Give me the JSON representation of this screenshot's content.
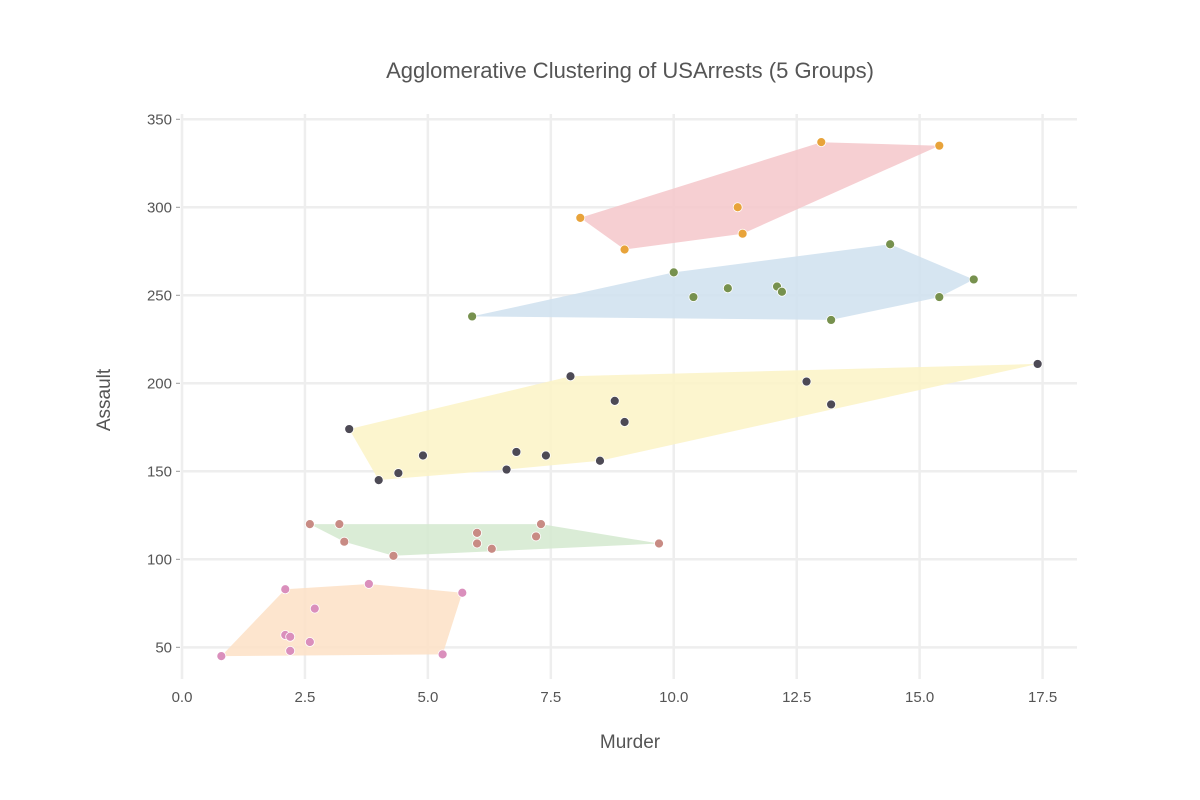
{
  "chart_data": {
    "type": "scatter",
    "title": "Agglomerative Clustering of USArrests (5 Groups)",
    "xlabel": "Murder",
    "ylabel": "Assault",
    "xlim": [
      0,
      18.2
    ],
    "ylim": [
      32,
      353
    ],
    "xticks": [
      0,
      2.5,
      5,
      7.5,
      10,
      12.5,
      15,
      17.5
    ],
    "xtick_labels": [
      "0.0",
      "2.5",
      "5.0",
      "7.5",
      "10.0",
      "12.5",
      "15.0",
      "17.5"
    ],
    "yticks": [
      50,
      100,
      150,
      200,
      250,
      300,
      350
    ],
    "ytick_labels": [
      "50",
      "100",
      "150",
      "200",
      "250",
      "300",
      "350"
    ],
    "grid": true,
    "clusters": [
      {
        "hull_color": "#f4c7ca",
        "point_color": "#e8a33a",
        "points": [
          [
            8.1,
            294
          ],
          [
            9.0,
            276
          ],
          [
            11.3,
            300
          ],
          [
            11.4,
            285
          ],
          [
            13.0,
            337
          ],
          [
            15.4,
            335
          ]
        ]
      },
      {
        "hull_color": "#cfe0ee",
        "point_color": "#77914e",
        "points": [
          [
            5.9,
            238
          ],
          [
            10.0,
            263
          ],
          [
            10.4,
            249
          ],
          [
            11.1,
            254
          ],
          [
            12.1,
            255
          ],
          [
            12.2,
            252
          ],
          [
            13.2,
            236
          ],
          [
            14.4,
            279
          ],
          [
            15.4,
            249
          ],
          [
            16.1,
            259
          ]
        ]
      },
      {
        "hull_color": "#fcf3c6",
        "point_color": "#4d4a55",
        "points": [
          [
            3.4,
            174
          ],
          [
            4.0,
            145
          ],
          [
            4.4,
            149
          ],
          [
            4.9,
            159
          ],
          [
            6.6,
            151
          ],
          [
            6.8,
            161
          ],
          [
            7.4,
            159
          ],
          [
            7.9,
            204
          ],
          [
            8.5,
            156
          ],
          [
            8.8,
            190
          ],
          [
            9.0,
            178
          ],
          [
            12.7,
            201
          ],
          [
            13.2,
            188
          ],
          [
            17.4,
            211
          ]
        ]
      },
      {
        "hull_color": "#d3e9cf",
        "point_color": "#c88b84",
        "points": [
          [
            2.6,
            120
          ],
          [
            3.2,
            120
          ],
          [
            3.3,
            110
          ],
          [
            4.3,
            102
          ],
          [
            6.0,
            115
          ],
          [
            6.0,
            109
          ],
          [
            6.3,
            106
          ],
          [
            7.2,
            113
          ],
          [
            7.3,
            120
          ],
          [
            9.7,
            109
          ]
        ]
      },
      {
        "hull_color": "#fde0c6",
        "point_color": "#da8fbc",
        "points": [
          [
            0.8,
            45
          ],
          [
            2.1,
            83
          ],
          [
            2.1,
            57
          ],
          [
            2.2,
            56
          ],
          [
            2.2,
            48
          ],
          [
            2.6,
            53
          ],
          [
            2.7,
            72
          ],
          [
            3.8,
            86
          ],
          [
            5.3,
            46
          ],
          [
            5.7,
            81
          ]
        ]
      }
    ]
  }
}
